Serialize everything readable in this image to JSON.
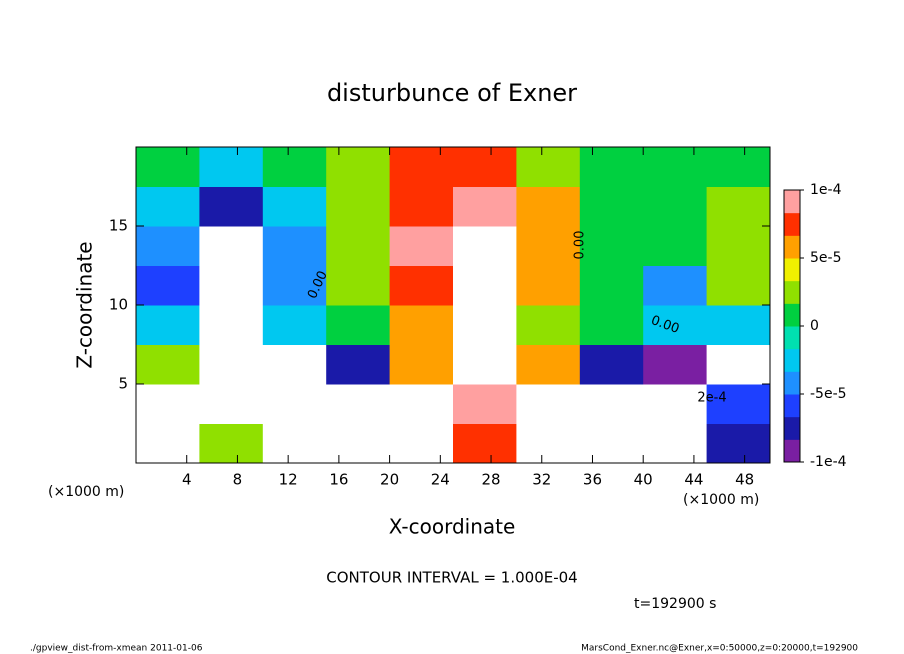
{
  "chart_data": {
    "type": "heatmap",
    "title": "disturbunce of Exner",
    "xlabel": "X-coordinate",
    "ylabel": "Z-coordinate",
    "x_unit_labels": [
      "(×1000 m)",
      "(×1000 m)"
    ],
    "x_edges": [
      0,
      5,
      10,
      15,
      20,
      25,
      30,
      35,
      40,
      45,
      50
    ],
    "y_edges": [
      0,
      2.5,
      5,
      7.5,
      10,
      12.5,
      15,
      17.5,
      20
    ],
    "z": [
      [
        -0.00012,
        3e-05,
        -0.00012,
        -0.00015,
        -0.00012,
        8e-05,
        -0.00015,
        -0.00012,
        -0.00012,
        -8e-05
      ],
      [
        -0.00012,
        -0.00012,
        -0.00015,
        -0.00012,
        -0.00012,
        0.0001,
        -0.00015,
        -0.00012,
        -0.00012,
        -6e-05
      ],
      [
        3e-05,
        -0.00015,
        -0.00012,
        -8e-05,
        5e-05,
        0.00012,
        6e-05,
        -8e-05,
        -0.0001,
        -0.00012
      ],
      [
        -3e-05,
        -0.00015,
        -3e-05,
        1e-05,
        6e-05,
        0.00015,
        3e-05,
        0,
        -2e-05,
        -3e-05
      ],
      [
        -6e-05,
        -0.00015,
        -4e-05,
        2e-05,
        8e-05,
        0.00015,
        5e-05,
        0,
        -5e-05,
        3e-05
      ],
      [
        -5e-05,
        -0.00015,
        -5e-05,
        3e-05,
        9e-05,
        0.00015,
        6e-05,
        0,
        0,
        3e-05
      ],
      [
        -2e-05,
        -8e-05,
        -3e-05,
        3e-05,
        8e-05,
        9e-05,
        5e-05,
        0,
        0,
        2e-05
      ],
      [
        0,
        -3e-05,
        0,
        3e-05,
        7e-05,
        8e-05,
        3e-05,
        0,
        0,
        0
      ]
    ],
    "xlim": [
      0,
      50
    ],
    "ylim": [
      0,
      20
    ],
    "xticks": [
      4,
      8,
      12,
      16,
      20,
      24,
      28,
      32,
      36,
      40,
      44,
      48
    ],
    "yticks": [
      5,
      10,
      15
    ],
    "clim": [
      -0.0001,
      0.0001
    ],
    "colorbar_ticks": [
      {
        "value": 0.0001,
        "label": "1e-4"
      },
      {
        "value": 5e-05,
        "label": "5e-5"
      },
      0,
      {
        "value": -5e-05,
        "label": "-5e-5"
      },
      {
        "value": -0.0001,
        "label": "-1e-4"
      }
    ],
    "colors": [
      "#7a1fa2",
      "#1a1aa8",
      "#1e40ff",
      "#1e90ff",
      "#00c8f0",
      "#00e0b0",
      "#00d040",
      "#90e000",
      "#f0f000",
      "#ffa000",
      "#ff3000",
      "#ffa0a0"
    ],
    "contour_labels": [
      "0.00",
      "0.00",
      "0.00",
      "2e-4"
    ],
    "contour_interval": "CONTOUR INTERVAL = 1.000E-04",
    "time_label": "t=192900 s",
    "footer_left": "./gpview_dist-from-xmean  2011-01-06",
    "footer_right": "MarsCond_Exner.nc@Exner,x=0:50000,z=0:20000,t=192900"
  }
}
